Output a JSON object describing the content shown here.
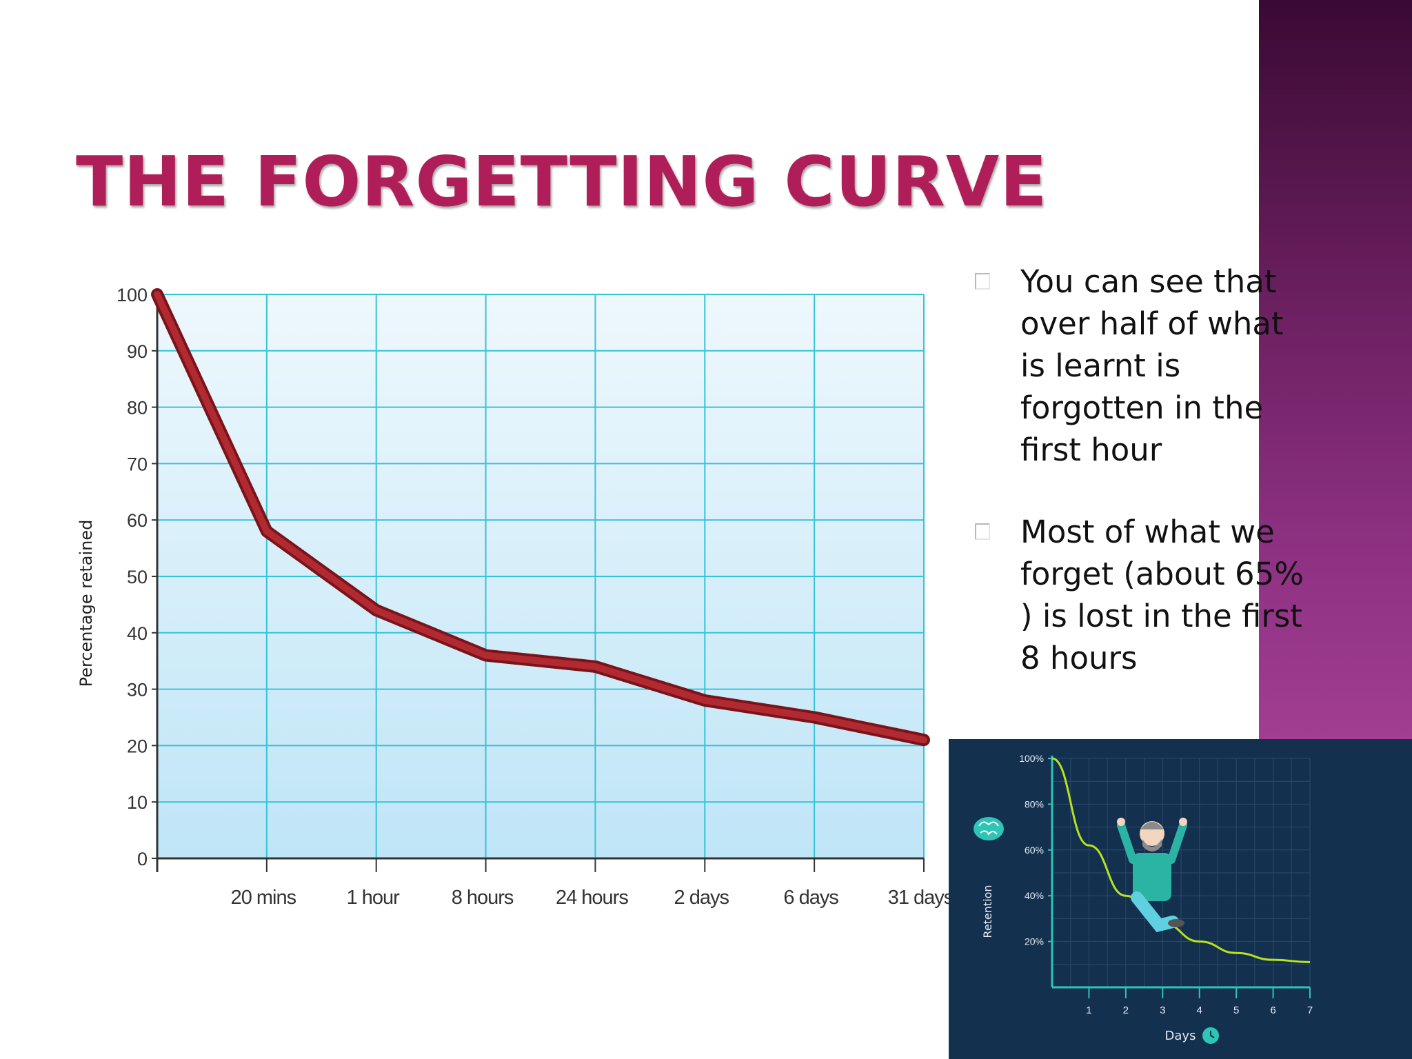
{
  "slide": {
    "title": "THE FORGETTING CURVE",
    "colors": {
      "title": "#b01e5a",
      "accent_band": "#8f3183",
      "curve": "#a3242c",
      "inset_bg": "#14304f"
    },
    "bullets": [
      "You can see that over half of what is learnt is forgotten in the first hour",
      "Most of what we forget (about 65% ) is lost in the first 8 hours"
    ]
  },
  "chart_data": [
    {
      "type": "line",
      "title": "",
      "xlabel": "",
      "ylabel": "Percentage retained",
      "x": [
        "",
        "20 mins",
        "1 hour",
        "8 hours",
        "24 hours",
        "2 days",
        "6 days",
        "31 days"
      ],
      "series": [
        {
          "values": [
            100,
            58,
            44,
            36,
            34,
            28,
            25,
            21
          ]
        }
      ],
      "ylim": [
        0,
        100
      ],
      "yticks": [
        0,
        10,
        20,
        30,
        40,
        50,
        60,
        70,
        80,
        90,
        100
      ],
      "grid": true,
      "legend": "none"
    },
    {
      "type": "line",
      "title": "",
      "xlabel": "Days",
      "ylabel": "Retention",
      "x": [
        0,
        1,
        2,
        3,
        4,
        5,
        6,
        7
      ],
      "xticks": [
        "1",
        "2",
        "3",
        "4",
        "5",
        "6",
        "7"
      ],
      "ytick_labels": [
        "20%",
        "40%",
        "60%",
        "80%",
        "100%"
      ],
      "yticks": [
        20,
        40,
        60,
        80,
        100
      ],
      "ylim": [
        0,
        100
      ],
      "series": [
        {
          "values": [
            100,
            62,
            40,
            28,
            20,
            15,
            12,
            11
          ]
        }
      ],
      "grid": true,
      "legend": "none",
      "icons": [
        "brain-icon",
        "clock-icon",
        "man-sliding-illustration"
      ]
    }
  ]
}
